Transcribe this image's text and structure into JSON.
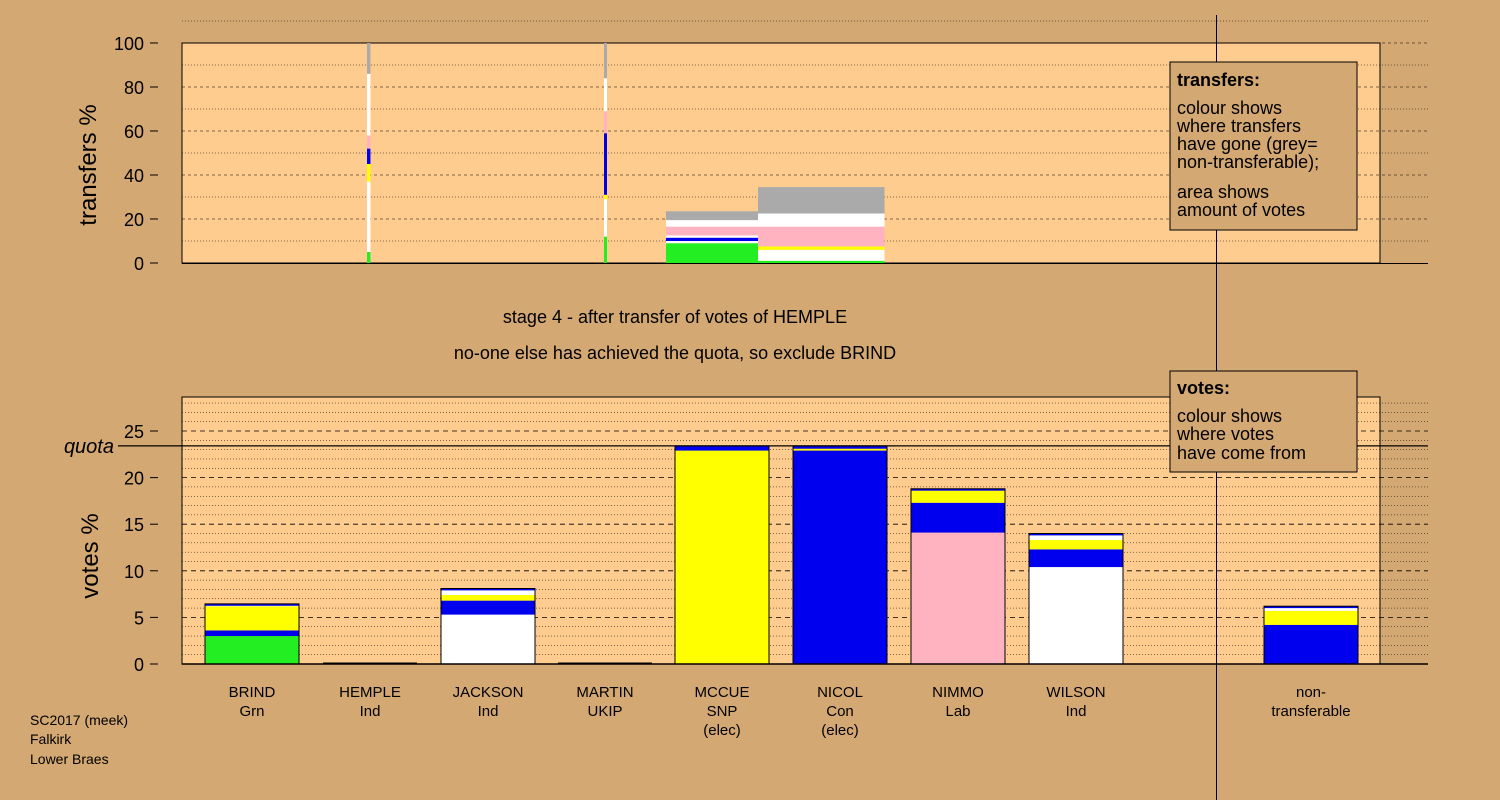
{
  "colors": {
    "background": "#d4a873",
    "plot_fill": "#ffcc8f",
    "green": "#22ee22",
    "blue": "#0000ee",
    "yellow": "#ffff00",
    "pink": "#ffb3c1",
    "white": "#ffffff",
    "grey": "#aaaaaa"
  },
  "status": {
    "stage_line": "stage 4 - after transfer of votes of HEMPLE",
    "action_line": "no-one else has achieved the quota, so exclude BRIND"
  },
  "footer": {
    "line1": "SC2017 (meek)",
    "line2": "Falkirk",
    "line3": "Lower Braes"
  },
  "legends": {
    "transfers": {
      "title": "transfers:",
      "lines": [
        "colour shows",
        "where transfers",
        "have gone (grey=",
        "non-transferable);"
      ],
      "lines2": [
        "area shows",
        "amount of votes"
      ]
    },
    "votes": {
      "title": "votes:",
      "lines": [
        "colour shows",
        "where votes",
        "have come from"
      ]
    }
  },
  "chart_data": [
    {
      "type": "bar",
      "ylabel": "transfers %",
      "ylim": [
        0,
        100
      ],
      "yticks": [
        0,
        20,
        40,
        60,
        80,
        100
      ],
      "grid": true,
      "note": "stacked transfer columns; width proportional to votes transferred",
      "columns": [
        {
          "candidate": "BRIND",
          "vote_share": 0.3,
          "stack": [
            {
              "color": "green",
              "value": 5
            },
            {
              "color": "white",
              "value": 32
            },
            {
              "color": "yellow",
              "value": 8
            },
            {
              "color": "blue",
              "value": 7
            },
            {
              "color": "pink",
              "value": 6
            },
            {
              "color": "white",
              "value": 28
            },
            {
              "color": "grey",
              "value": 14
            }
          ]
        },
        {
          "candidate": "MARTIN",
          "vote_share": 0.2,
          "stack": [
            {
              "color": "green",
              "value": 12
            },
            {
              "color": "white",
              "value": 17
            },
            {
              "color": "yellow",
              "value": 2
            },
            {
              "color": "blue",
              "value": 28
            },
            {
              "color": "pink",
              "value": 10
            },
            {
              "color": "white",
              "value": 15
            },
            {
              "color": "grey",
              "value": 16
            }
          ]
        },
        {
          "candidate": "JACKSON",
          "vote_share": 8.0,
          "stack": [
            {
              "color": "green",
              "value": 9
            },
            {
              "color": "white",
              "value": 1
            },
            {
              "color": "blue",
              "value": 1.5
            },
            {
              "color": "white",
              "value": 1
            },
            {
              "color": "pink",
              "value": 4
            },
            {
              "color": "white",
              "value": 3
            },
            {
              "color": "grey",
              "value": 4
            }
          ]
        },
        {
          "candidate": "WILSON",
          "vote_share": 11.0,
          "stack": [
            {
              "color": "green",
              "value": 1
            },
            {
              "color": "white",
              "value": 5
            },
            {
              "color": "yellow",
              "value": 1.5
            },
            {
              "color": "pink",
              "value": 9
            },
            {
              "color": "white",
              "value": 6
            },
            {
              "color": "grey",
              "value": 12
            }
          ]
        }
      ]
    },
    {
      "type": "bar",
      "ylabel": "votes %",
      "ylim": [
        0,
        28
      ],
      "yticks": [
        0,
        5,
        10,
        15,
        20,
        25
      ],
      "quota": 23.4,
      "quota_label": "quota",
      "grid": true,
      "categories": [
        "BRIND",
        "HEMPLE",
        "JACKSON",
        "MARTIN",
        "MCCUE",
        "NICOL",
        "NIMMO",
        "WILSON",
        "non-transferable"
      ],
      "category_lines": [
        [
          "BRIND",
          "Grn",
          ""
        ],
        [
          "HEMPLE",
          "Ind",
          ""
        ],
        [
          "JACKSON",
          "Ind",
          ""
        ],
        [
          "MARTIN",
          "UKIP",
          ""
        ],
        [
          "MCCUE",
          "SNP",
          "(elec)"
        ],
        [
          "NICOL",
          "Con",
          "(elec)"
        ],
        [
          "NIMMO",
          "Lab",
          ""
        ],
        [
          "WILSON",
          "Ind",
          ""
        ],
        [
          "non-",
          "transferable",
          ""
        ]
      ],
      "stacks": [
        [
          {
            "color": "green",
            "value": 3.0
          },
          {
            "color": "blue",
            "value": 0.6
          },
          {
            "color": "yellow",
            "value": 2.6
          },
          {
            "color": "white",
            "value": 0.05
          },
          {
            "color": "blue",
            "value": 0.2
          }
        ],
        [],
        [
          {
            "color": "white",
            "value": 5.3
          },
          {
            "color": "blue",
            "value": 1.5
          },
          {
            "color": "yellow",
            "value": 0.6
          },
          {
            "color": "white",
            "value": 0.5
          },
          {
            "color": "blue",
            "value": 0.2
          }
        ],
        [],
        [
          {
            "color": "yellow",
            "value": 22.9
          },
          {
            "color": "blue",
            "value": 0.5
          }
        ],
        [
          {
            "color": "blue",
            "value": 22.9
          },
          {
            "color": "yellow",
            "value": 0.2
          },
          {
            "color": "blue",
            "value": 0.3
          }
        ],
        [
          {
            "color": "pink",
            "value": 14.1
          },
          {
            "color": "blue",
            "value": 3.2
          },
          {
            "color": "yellow",
            "value": 1.3
          },
          {
            "color": "blue",
            "value": 0.2
          }
        ],
        [
          {
            "color": "white",
            "value": 10.4
          },
          {
            "color": "blue",
            "value": 1.9
          },
          {
            "color": "yellow",
            "value": 1.0
          },
          {
            "color": "white",
            "value": 0.5
          },
          {
            "color": "blue",
            "value": 0.2
          }
        ],
        [
          {
            "color": "blue",
            "value": 4.2
          },
          {
            "color": "yellow",
            "value": 1.5
          },
          {
            "color": "white",
            "value": 0.3
          },
          {
            "color": "blue",
            "value": 0.2
          }
        ]
      ]
    }
  ]
}
